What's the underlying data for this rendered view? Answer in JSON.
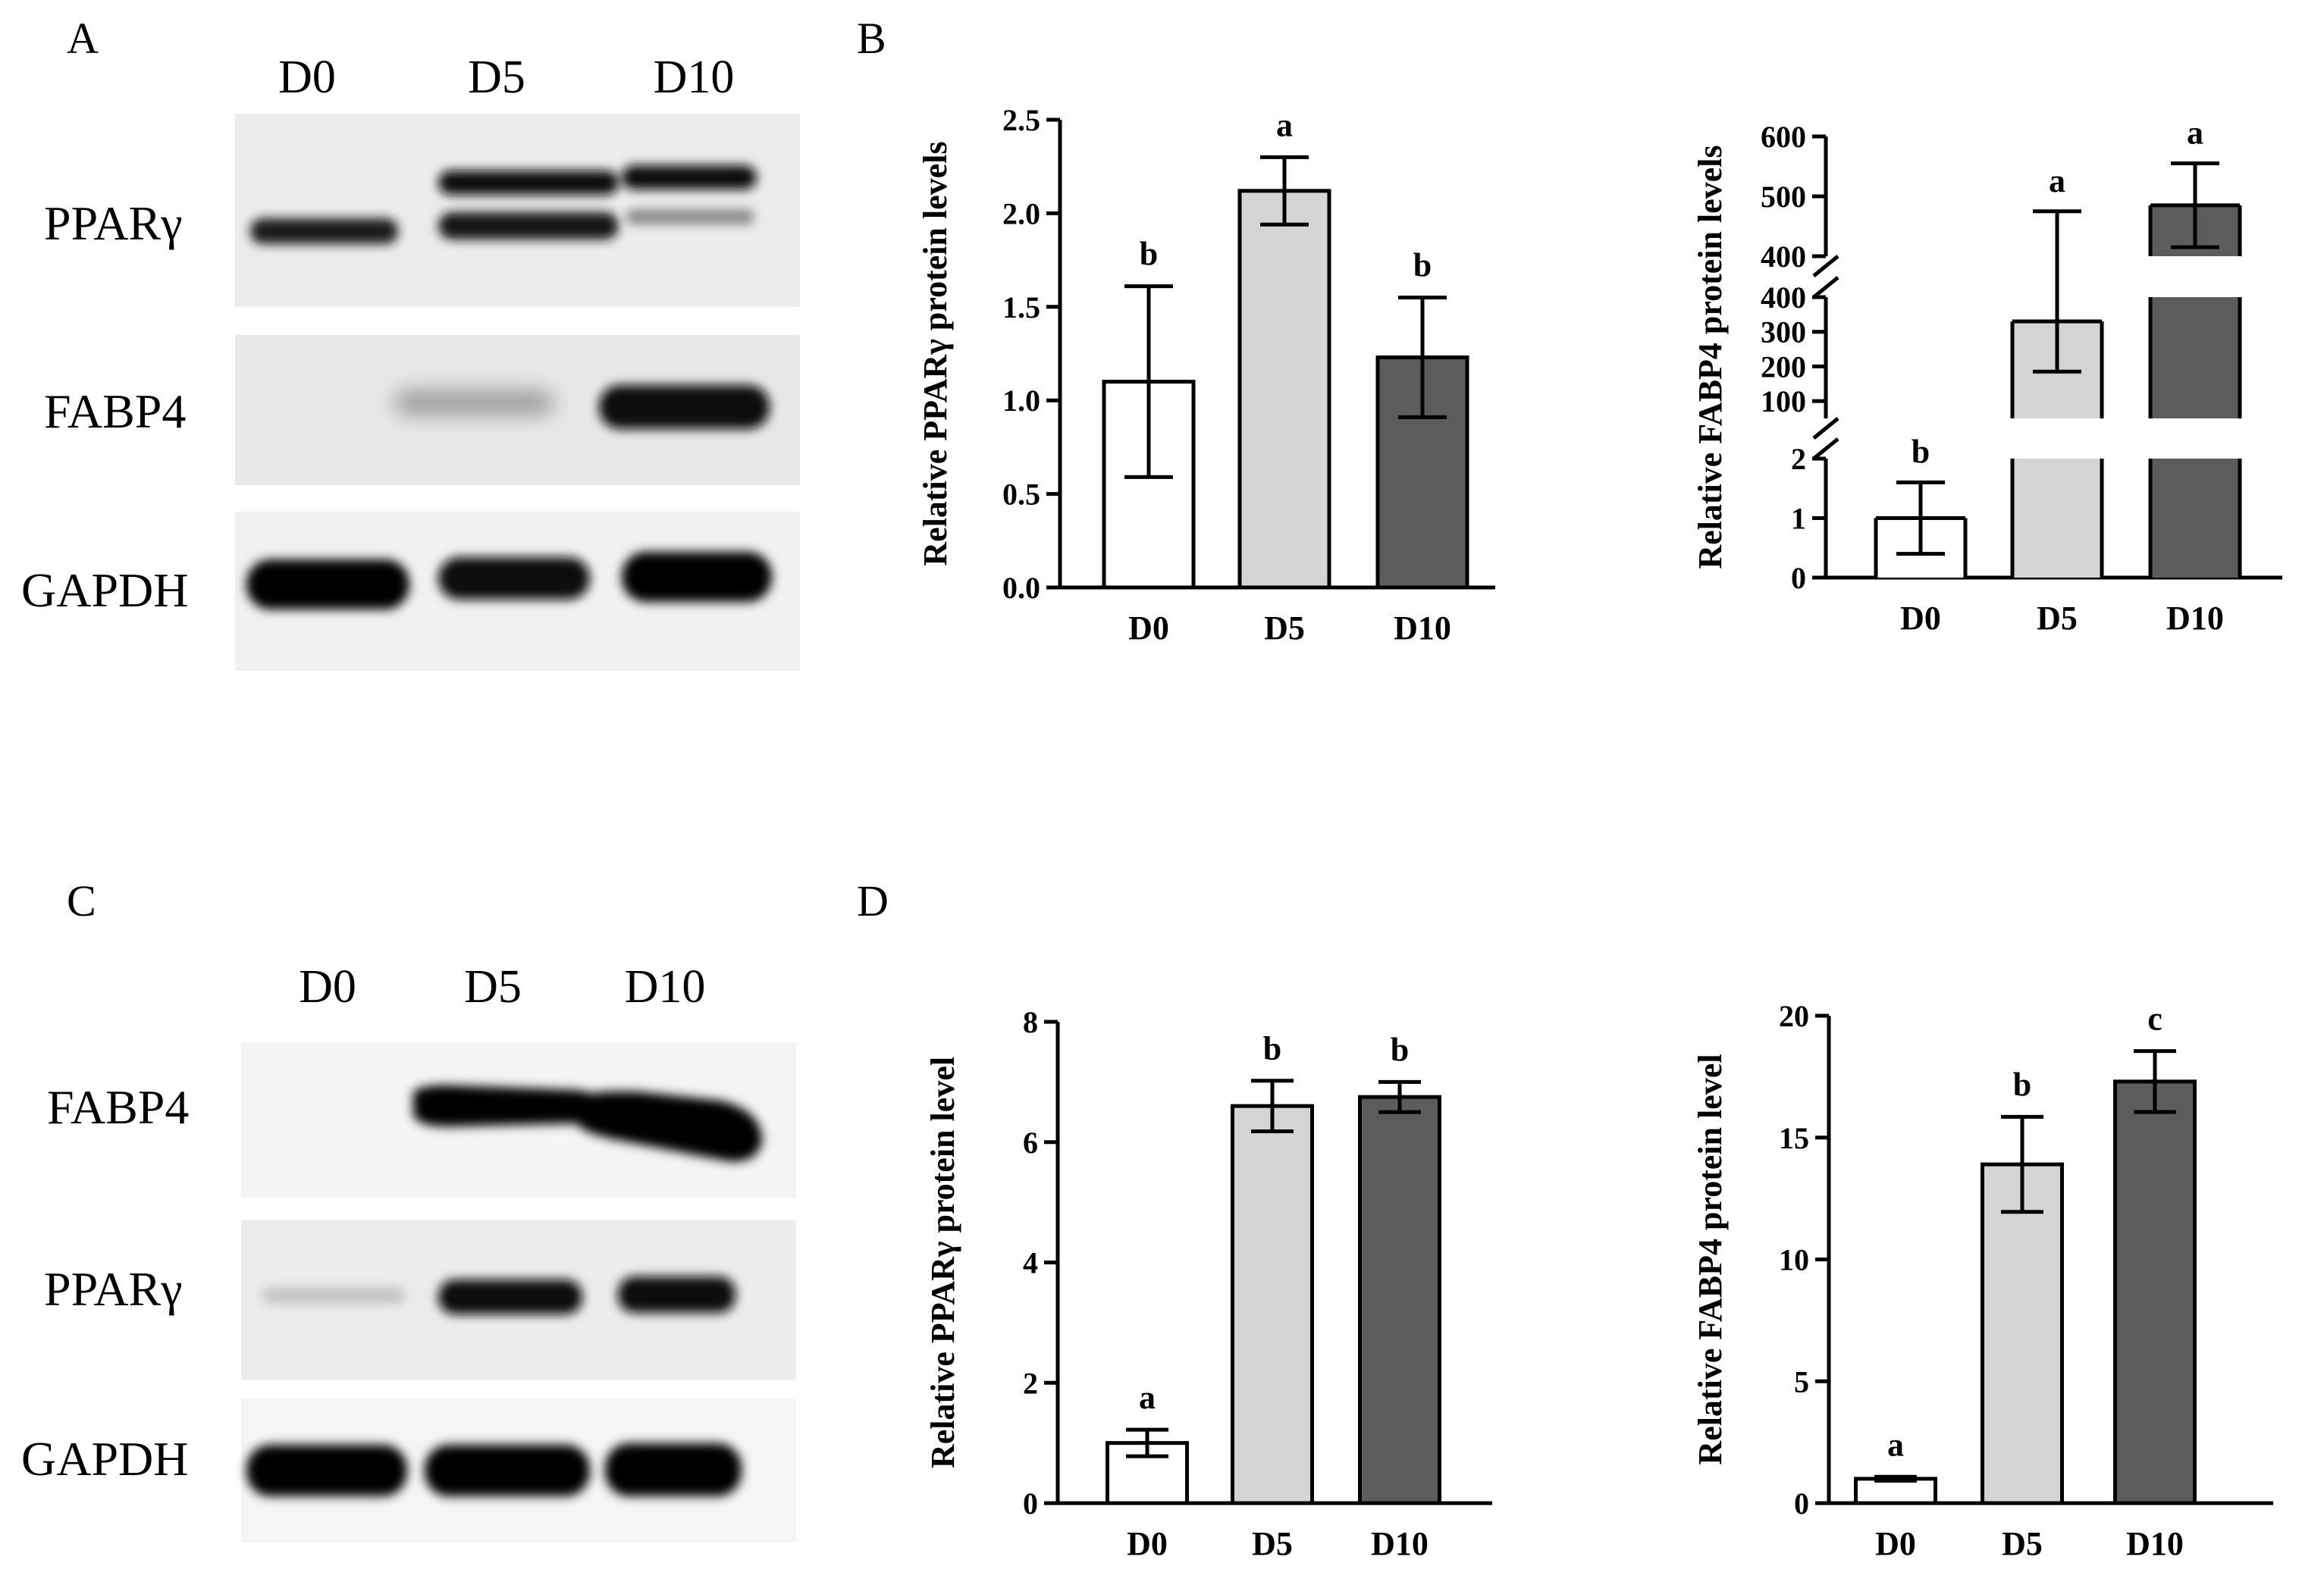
{
  "panels": {
    "A": {
      "letter": "A",
      "lanes": [
        "D0",
        "D5",
        "D10"
      ],
      "proteins": [
        "PPARγ",
        "FABP4",
        "GAPDH"
      ]
    },
    "B": {
      "letter": "B"
    },
    "C": {
      "letter": "C",
      "lanes": [
        "D0",
        "D5",
        "D10"
      ],
      "proteins": [
        "FABP4",
        "PPARγ",
        "GAPDH"
      ]
    },
    "D": {
      "letter": "D"
    }
  },
  "colors": {
    "D0": "#ffffff",
    "D5": "#d4d4d4",
    "D10": "#5c5c5c"
  },
  "chart_data": [
    {
      "id": "B-left",
      "type": "bar",
      "ylabel": "Relative PPARγ protein levels",
      "categories": [
        "D0",
        "D5",
        "D10"
      ],
      "values": [
        1.1,
        2.12,
        1.23
      ],
      "errors": [
        0.51,
        0.18,
        0.32
      ],
      "significance": [
        "b",
        "a",
        "b"
      ],
      "ylim": [
        0,
        2.5
      ],
      "yticks": [
        0.0,
        0.5,
        1.0,
        1.5,
        2.0,
        2.5
      ],
      "ytick_labels": [
        "0.0",
        "0.5",
        "1.0",
        "1.5",
        "2.0",
        "2.5"
      ]
    },
    {
      "id": "B-right",
      "type": "bar",
      "ylabel": "Relative FABP4 protein levels",
      "categories": [
        "D0",
        "D5",
        "D10"
      ],
      "values": [
        1.0,
        330,
        485
      ],
      "errors": [
        0.6,
        145,
        70
      ],
      "significance": [
        "b",
        "a",
        "a"
      ],
      "broken_axis": true,
      "segments": [
        {
          "range": [
            0,
            2
          ],
          "ticks": [
            0,
            1,
            2
          ],
          "labels": [
            "0",
            "1",
            "2"
          ]
        },
        {
          "range": [
            50,
            400
          ],
          "ticks": [
            100,
            200,
            300,
            400
          ],
          "labels": [
            "100",
            "200",
            "300",
            "400"
          ]
        },
        {
          "range": [
            400,
            600
          ],
          "ticks": [
            400,
            500,
            600
          ],
          "labels": [
            "400",
            "500",
            "600"
          ]
        }
      ]
    },
    {
      "id": "D-left",
      "type": "bar",
      "ylabel": "Relative PPARγ protein level",
      "categories": [
        "D0",
        "D5",
        "D10"
      ],
      "values": [
        1.0,
        6.6,
        6.75
      ],
      "errors": [
        0.22,
        0.42,
        0.25
      ],
      "significance": [
        "a",
        "b",
        "b"
      ],
      "ylim": [
        0,
        8
      ],
      "yticks": [
        0,
        2,
        4,
        6,
        8
      ],
      "ytick_labels": [
        "0",
        "2",
        "4",
        "6",
        "8"
      ]
    },
    {
      "id": "D-right",
      "type": "bar",
      "ylabel": "Relative FABP4 protein level",
      "categories": [
        "D0",
        "D5",
        "D10"
      ],
      "values": [
        1.0,
        13.9,
        17.3
      ],
      "errors": [
        0.08,
        1.95,
        1.25
      ],
      "significance": [
        "a",
        "b",
        "c"
      ],
      "ylim": [
        0,
        20
      ],
      "yticks": [
        0,
        5,
        10,
        15,
        20
      ],
      "ytick_labels": [
        "0",
        "5",
        "10",
        "15",
        "20"
      ]
    }
  ]
}
